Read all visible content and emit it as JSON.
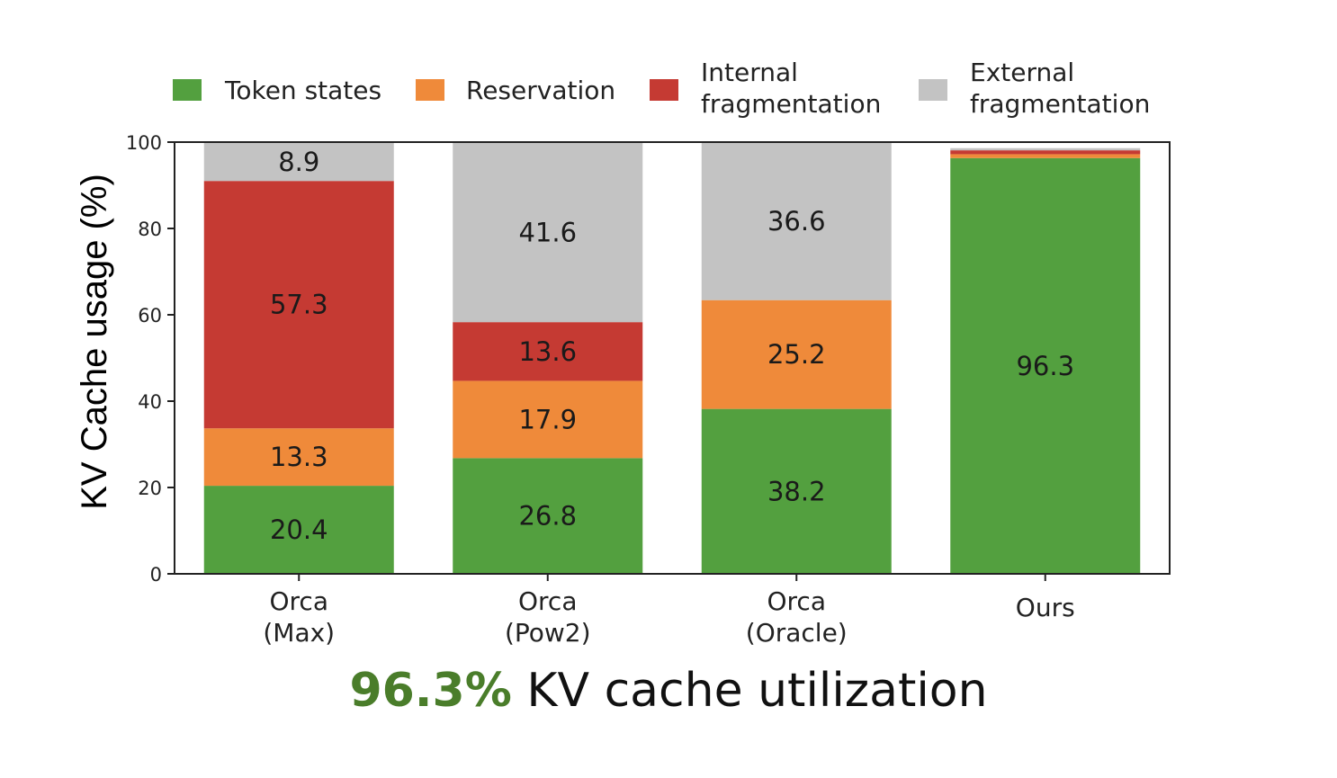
{
  "chart_data": {
    "type": "bar",
    "stacked": true,
    "ylabel": "KV Cache usage (%)",
    "xlabel": "",
    "ylim": [
      0,
      100
    ],
    "yticks": [
      0,
      20,
      40,
      60,
      80,
      100
    ],
    "grid": false,
    "legend_position": "top",
    "categories": [
      [
        "Orca",
        "(Max)"
      ],
      [
        "Orca",
        "(Pow2)"
      ],
      [
        "Orca",
        "(Oracle)"
      ],
      [
        "Ours"
      ]
    ],
    "series": [
      {
        "name": [
          "Token states"
        ],
        "color": "#53a03f",
        "values": [
          20.4,
          26.8,
          38.2,
          96.3
        ],
        "labels": [
          "20.4",
          "26.8",
          "38.2",
          "96.3"
        ]
      },
      {
        "name": [
          "Reservation"
        ],
        "color": "#ef8a3a",
        "values": [
          13.3,
          17.9,
          25.2,
          0.9
        ],
        "labels": [
          "13.3",
          "17.9",
          "25.2",
          ""
        ]
      },
      {
        "name": [
          "Internal",
          "fragmentation"
        ],
        "color": "#c53a33",
        "values": [
          57.3,
          13.6,
          0,
          0.9
        ],
        "labels": [
          "57.3",
          "13.6",
          "",
          ""
        ]
      },
      {
        "name": [
          "External",
          "fragmentation"
        ],
        "color": "#c3c3c3",
        "values": [
          8.9,
          41.6,
          36.6,
          0.5
        ],
        "labels": [
          "8.9",
          "41.6",
          "36.6",
          ""
        ]
      }
    ]
  },
  "caption": {
    "highlight": "96.3%",
    "text": " KV cache utilization"
  }
}
